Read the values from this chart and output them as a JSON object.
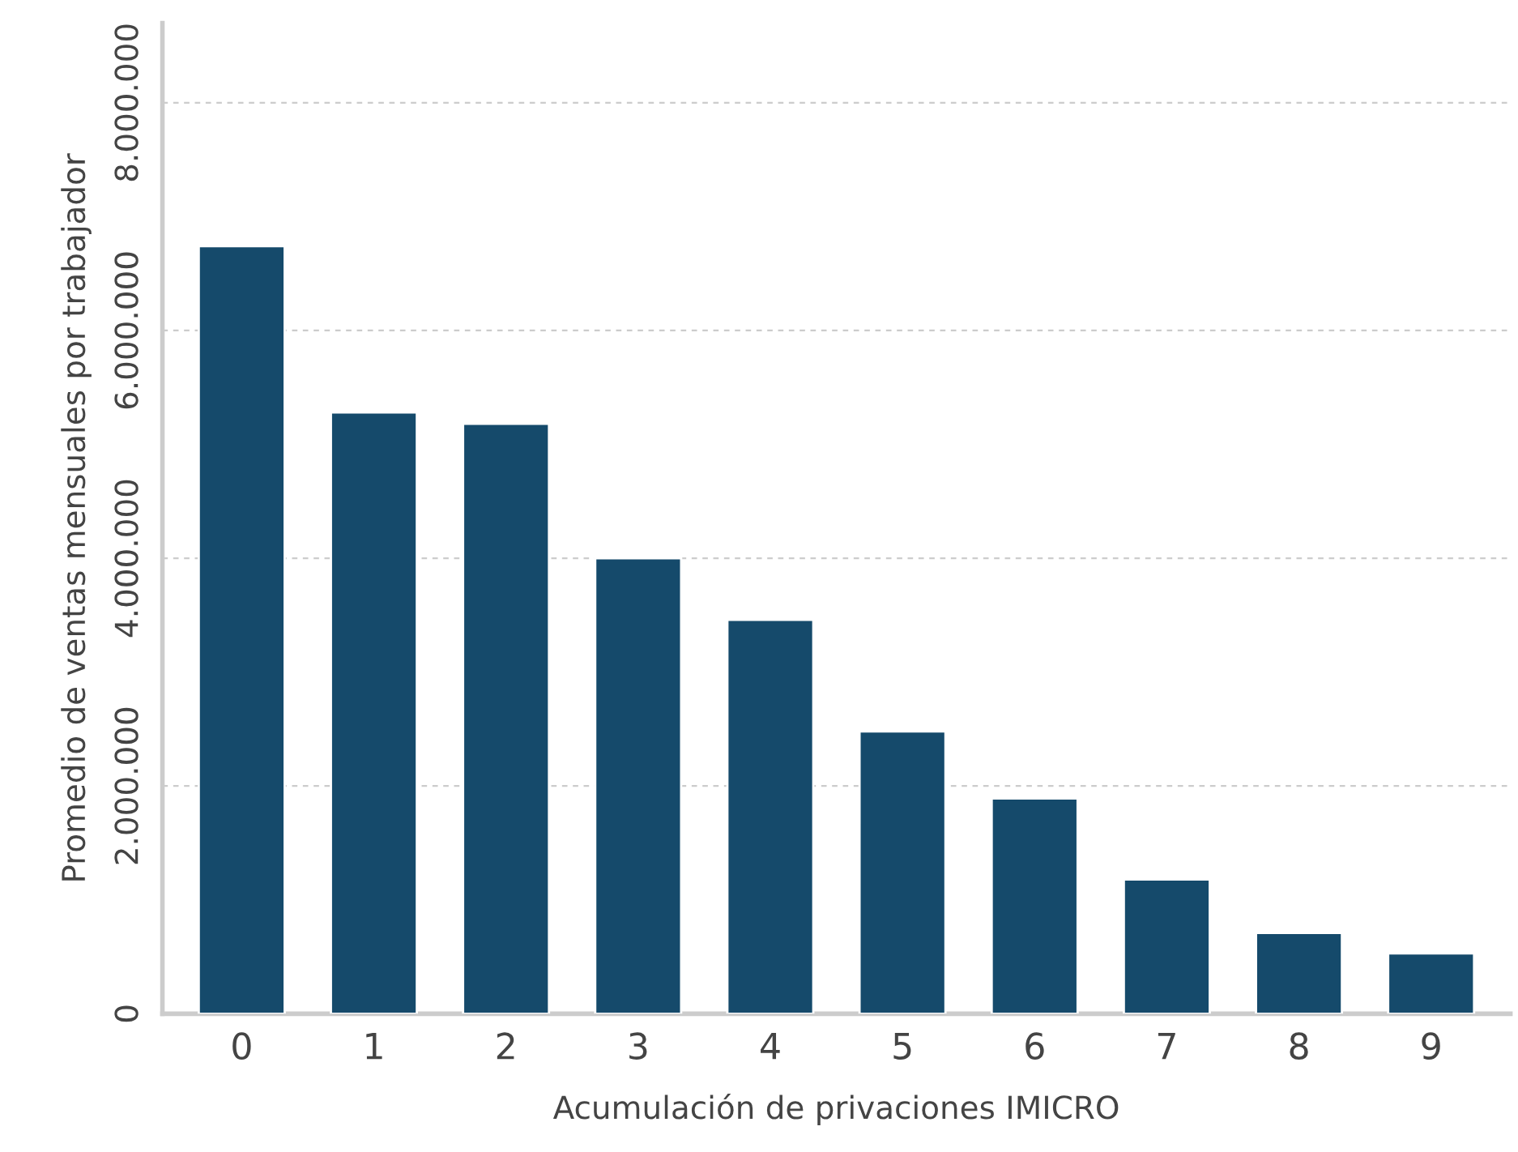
{
  "chart_data": {
    "type": "bar",
    "xlabel": "Acumulación de privaciones IMICRO",
    "ylabel": "Promedio de ventas mensuales por trabajador",
    "categories": [
      "0",
      "1",
      "2",
      "3",
      "4",
      "5",
      "6",
      "7",
      "8",
      "9"
    ],
    "values": [
      6740000,
      5280000,
      5180000,
      4000000,
      3460000,
      2480000,
      1890000,
      1180000,
      710000,
      530000
    ],
    "color": "#154a6b",
    "ylim": [
      0,
      8700000
    ],
    "yticks": [
      {
        "value": 0,
        "label": "0"
      },
      {
        "value": 2000000,
        "label": "2.000.000"
      },
      {
        "value": 4000000,
        "label": "4.000.000"
      },
      {
        "value": 6000000,
        "label": "6.000.000"
      },
      {
        "value": 8000000,
        "label": "8.000.000"
      }
    ],
    "grid": "y"
  }
}
